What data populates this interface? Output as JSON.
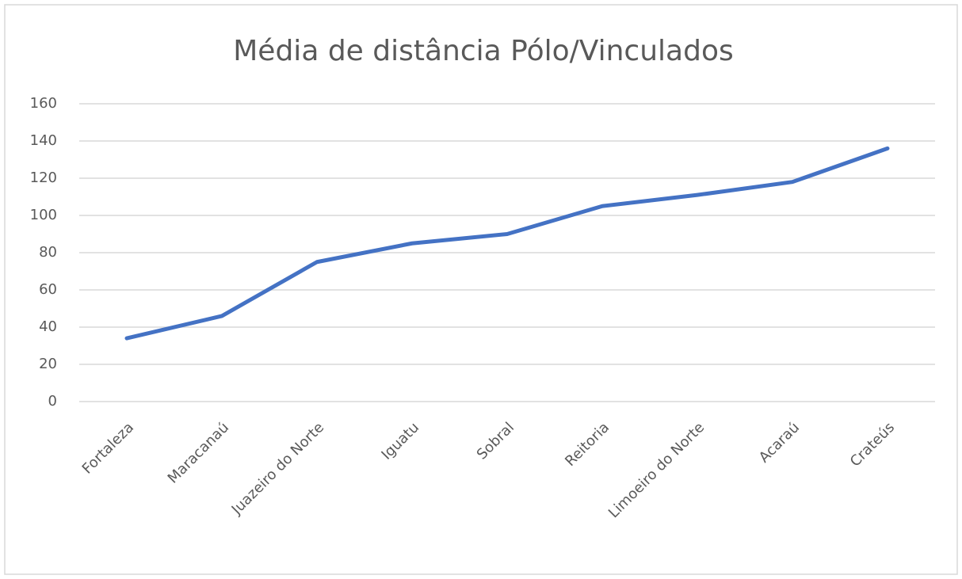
{
  "chart_data": {
    "type": "line",
    "title": "Média de distância Pólo/Vinculados",
    "categories": [
      "Fortaleza",
      "Maracanaú",
      "Juazeiro do Norte",
      "Iguatu",
      "Sobral",
      "Reitoria",
      "Limoeiro do Norte",
      "Acaraú",
      "Crateús"
    ],
    "values": [
      34,
      46,
      75,
      85,
      90,
      105,
      111,
      118,
      136
    ],
    "color": "#4472c4",
    "ylim": [
      0,
      160
    ],
    "yticks": [
      0,
      20,
      40,
      60,
      80,
      100,
      120,
      140,
      160
    ],
    "grid": true
  }
}
